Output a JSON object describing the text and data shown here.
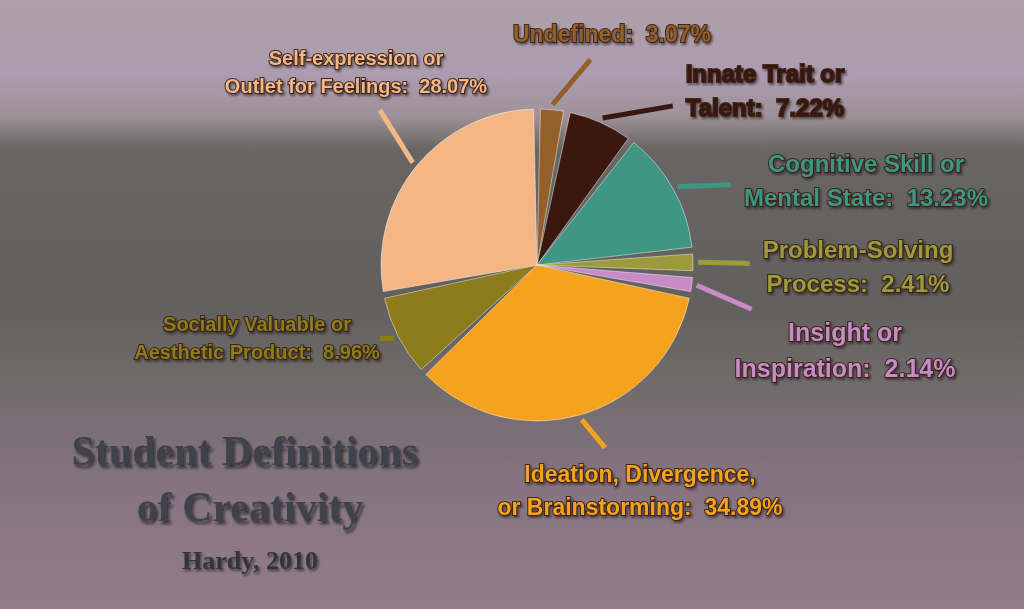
{
  "chart_data": {
    "type": "pie",
    "title": "Student Definitions of Creativity",
    "subtitle": "Hardy, 2010",
    "categories": [
      "Undefined",
      "Innate Trait or Talent",
      "Cognitive Skill or Mental State",
      "Problem-Solving Process",
      "Insight or Inspiration",
      "Ideation, Divergence, or Brainstorming",
      "Socially Valuable or Aesthetic Product",
      "Self-expression or Outlet for Feelings"
    ],
    "values": [
      3.07,
      7.22,
      13.23,
      2.41,
      2.14,
      34.89,
      8.96,
      28.07
    ],
    "value_labels": [
      "3.07%",
      "7.22%",
      "13.23%",
      "2.41%",
      "2.14%",
      "34.89%",
      "8.96%",
      "28.07%"
    ],
    "colors": [
      "#93602c",
      "#3a1810",
      "#3e9683",
      "#9c9a3a",
      "#c98ac8",
      "#f5a21e",
      "#8c7c1c",
      "#f4b684"
    ]
  }
}
